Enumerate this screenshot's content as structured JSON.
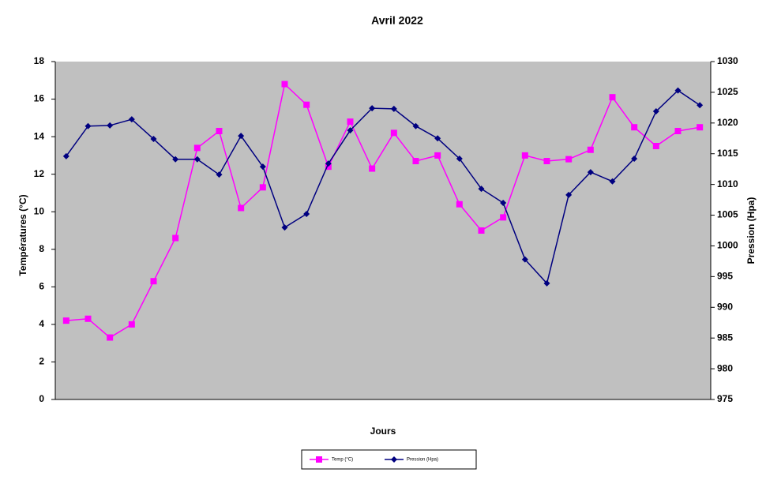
{
  "chart_data": {
    "type": "line",
    "title": "Avril 2022",
    "x_label": "Jours",
    "y_label": "Températures (°C)",
    "y2_label": "Pression (Hpa)",
    "categories": [
      null,
      null,
      null,
      null,
      null,
      null,
      null,
      null,
      null,
      null,
      null,
      null,
      null,
      null,
      null,
      null,
      null,
      null,
      null,
      null,
      null,
      null,
      null,
      null,
      null,
      null,
      null,
      null,
      null,
      null
    ],
    "series": [
      {
        "name": "Temp (°C)",
        "color": "#ff00ff",
        "marker": "square",
        "values": [
          4.2,
          4.3,
          3.3,
          4.0,
          6.3,
          8.6,
          13.4,
          14.3,
          10.2,
          11.3,
          16.8,
          15.7,
          12.4,
          14.8,
          12.3,
          14.2,
          12.7,
          13.0,
          10.4,
          9.0,
          9.7,
          13.0,
          12.7,
          12.8,
          13.3,
          16.1,
          14.5,
          13.5,
          14.3,
          14.5
        ]
      },
      {
        "name": "Pression (Hpa)",
        "color": "#000080",
        "marker": "diamond",
        "axis": "y2",
        "values": [
          1014.6,
          1019.5,
          1019.6,
          1020.6,
          1017.4,
          1014.1,
          1014.1,
          1011.6,
          1017.9,
          1012.9,
          1003.0,
          1005.2,
          1013.4,
          1018.8,
          1022.4,
          1022.3,
          1019.5,
          1017.5,
          1014.2,
          1009.3,
          1007.0,
          997.8,
          993.9,
          1008.3,
          1012.0,
          1010.5,
          1014.2,
          1021.9,
          1025.3,
          1022.9
        ]
      }
    ],
    "ylim": [
      0,
      18
    ],
    "yticks": [
      0,
      2,
      4,
      6,
      8,
      10,
      12,
      14,
      16,
      18
    ],
    "y2lim": [
      975,
      1030
    ],
    "y2ticks": [
      975,
      980,
      985,
      990,
      995,
      1000,
      1005,
      1010,
      1015,
      1020,
      1025,
      1030
    ],
    "plot_background": "#c0c0c0",
    "grid": false,
    "legend": "bottom"
  }
}
